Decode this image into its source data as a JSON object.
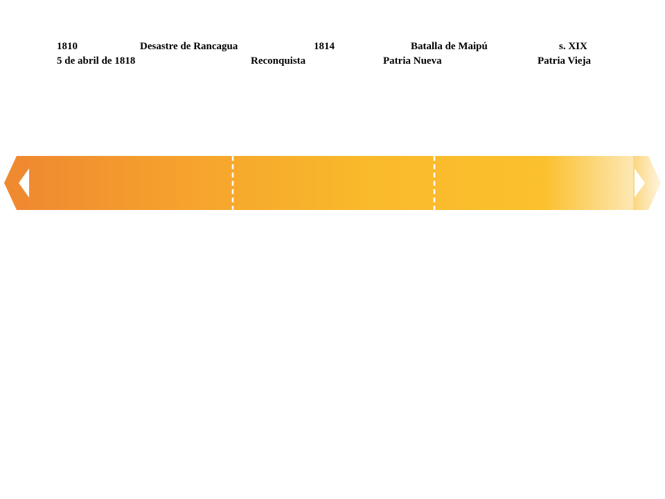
{
  "labels": {
    "row1": [
      "1810",
      "Desastre de Rancagua",
      "1814",
      "Batalla de Maipú",
      "s. XIX"
    ],
    "row2": [
      "5 de abril de 1818",
      "Reconquista",
      "Patria Nueva",
      "Patria Vieja"
    ]
  },
  "timeline": {
    "segments": 3,
    "colors": {
      "start": "#f08a30",
      "mid": "#f7b52a",
      "end": "#fbc02d"
    },
    "icons": [
      "arrow-left-icon",
      "arrow-right-icon"
    ]
  }
}
